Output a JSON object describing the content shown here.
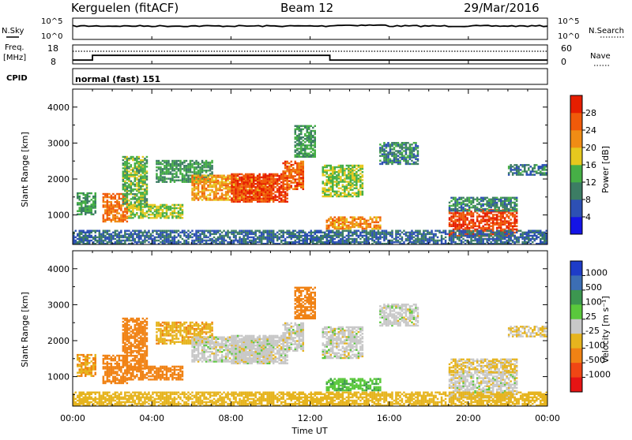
{
  "header": {
    "station": "Kerguelen (fitACF)",
    "beam": "Beam 12",
    "date": "29/Mar/2016"
  },
  "nsky_panel": {
    "left_label": "N.Sky",
    "right_label": "N.Search",
    "tick_top": "10^5",
    "tick_bottom": "10^0",
    "right_tick_top": "10^5",
    "right_tick_bottom": "10^0"
  },
  "freq_panel": {
    "left_label_1": "Freq.",
    "left_label_2": "[MHz]",
    "right_label": "Nave",
    "tick_top": "18",
    "tick_bottom": "8",
    "right_tick_top": "60",
    "right_tick_bottom": "0"
  },
  "cpid": {
    "label": "CPID",
    "value": "normal (fast) 151"
  },
  "range_axis": {
    "ylabel": "Slant Range [km]",
    "ticks": [
      "1000",
      "2000",
      "3000",
      "4000"
    ]
  },
  "time_axis": {
    "xlabel": "Time UT",
    "ticks": [
      "00:00",
      "04:00",
      "08:00",
      "12:00",
      "16:00",
      "20:00",
      "00:00"
    ]
  },
  "power_colorbar": {
    "label": "Power [dB]",
    "ticks": [
      "4",
      "8",
      "12",
      "16",
      "20",
      "24",
      "28"
    ],
    "colors": [
      "#1414e6",
      "#2d50b4",
      "#3c7d64",
      "#46af46",
      "#e6c81e",
      "#f08c14",
      "#f05a0a",
      "#e61e00"
    ]
  },
  "velocity_colorbar": {
    "label": "Velocity [m s⁻¹]",
    "ticks": [
      "1000",
      "500",
      "100",
      "25",
      "-25",
      "-100",
      "-500",
      "-1000"
    ],
    "colors": [
      "#1e3cc8",
      "#3c6eb4",
      "#3c9650",
      "#5ac83c",
      "#c8c8c8",
      "#e6b41e",
      "#f08214",
      "#f04614",
      "#e61414"
    ]
  },
  "chart_data": {
    "type": "heatmap",
    "x_range_hours": [
      0,
      24
    ],
    "range_km": [
      180,
      4500
    ],
    "nsky_level": "~10^4",
    "frequency_mhz": [
      {
        "from_h": 0,
        "to_h": 1,
        "value": 10
      },
      {
        "from_h": 1,
        "to_h": 13,
        "value": 12.5
      },
      {
        "from_h": 13,
        "to_h": 24,
        "value": 10
      }
    ],
    "nave_level": 40,
    "scatter_regions": [
      {
        "t0": 0.2,
        "t1": 1.2,
        "r0": 1000,
        "r1": 1600,
        "power": 12,
        "velocity": -100
      },
      {
        "t0": 1.5,
        "t1": 2.8,
        "r0": 800,
        "r1": 1600,
        "power": 24,
        "velocity": -300
      },
      {
        "t0": 2.5,
        "t1": 3.8,
        "r0": 1200,
        "r1": 2600,
        "power": 14,
        "velocity": -400
      },
      {
        "t0": 2.8,
        "t1": 5.5,
        "r0": 900,
        "r1": 1300,
        "power": 16,
        "velocity": -150
      },
      {
        "t0": 4.2,
        "t1": 7.0,
        "r0": 1900,
        "r1": 2500,
        "power": 12,
        "velocity": -80
      },
      {
        "t0": 6.0,
        "t1": 10.0,
        "r0": 1400,
        "r1": 2100,
        "power": 22,
        "velocity": 0
      },
      {
        "t0": 8.0,
        "t1": 10.8,
        "r0": 1350,
        "r1": 2150,
        "power": 28,
        "velocity": 0
      },
      {
        "t0": 10.6,
        "t1": 11.6,
        "r0": 1700,
        "r1": 2500,
        "power": 26,
        "velocity": 0
      },
      {
        "t0": 11.2,
        "t1": 12.2,
        "r0": 2600,
        "r1": 3500,
        "power": 12,
        "velocity": -200
      },
      {
        "t0": 12.6,
        "t1": 14.6,
        "r0": 1500,
        "r1": 2400,
        "power": 16,
        "velocity": 0
      },
      {
        "t0": 12.8,
        "t1": 15.5,
        "r0": 600,
        "r1": 950,
        "power": 22,
        "velocity": 80
      },
      {
        "t0": 15.5,
        "t1": 17.5,
        "r0": 2400,
        "r1": 3000,
        "power": 10,
        "velocity": 0
      },
      {
        "t0": 19.0,
        "t1": 22.5,
        "r0": 400,
        "r1": 1150,
        "power": 28,
        "velocity": 0
      },
      {
        "t0": 19.0,
        "t1": 22.5,
        "r0": 1100,
        "r1": 1500,
        "power": 10,
        "velocity": -30
      },
      {
        "t0": 22.0,
        "t1": 24.0,
        "r0": 2100,
        "r1": 2400,
        "power": 10,
        "velocity": -30
      },
      {
        "t0": 0.0,
        "t1": 24.0,
        "r0": 180,
        "r1": 550,
        "power": 8,
        "velocity": -60
      }
    ]
  }
}
